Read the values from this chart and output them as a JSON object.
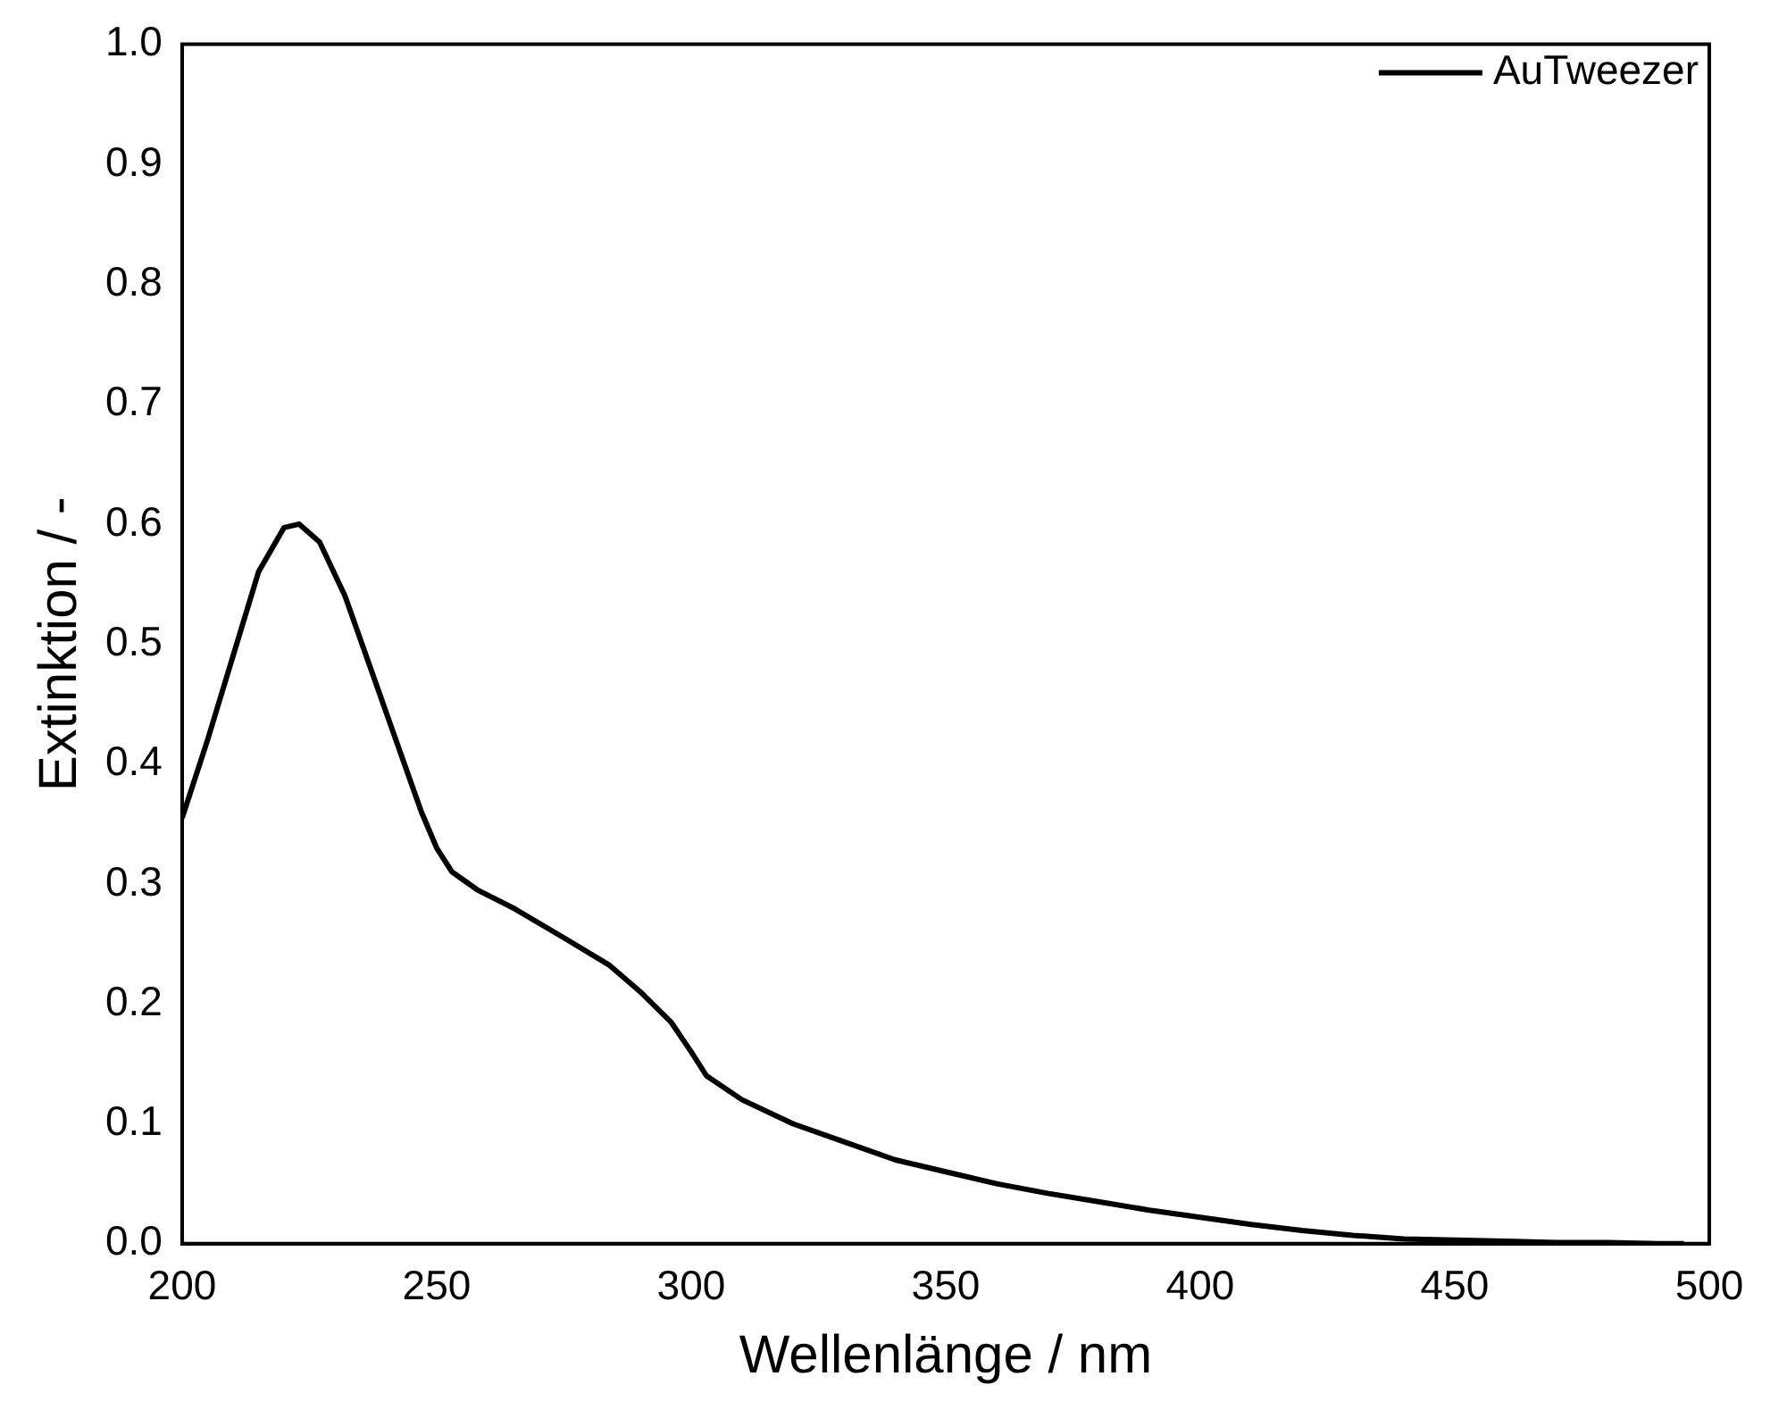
{
  "chart_data": {
    "type": "line",
    "xlabel": "Wellenlänge / nm",
    "ylabel": "Extinktion / -",
    "legend": "top right",
    "marker": "none",
    "line_style": "solid",
    "grid": false,
    "xlim": [
      200,
      500
    ],
    "xticks": [
      200,
      250,
      300,
      350,
      400,
      450,
      500
    ],
    "ylim": [
      0,
      1
    ],
    "yticks": [
      {
        "value": 0,
        "label": "0.0"
      },
      {
        "value": 0.1,
        "label": "0.1"
      },
      {
        "value": 0.2,
        "label": "0.2"
      },
      {
        "value": 0.3,
        "label": "0.3"
      },
      {
        "value": 0.4,
        "label": "0.4"
      },
      {
        "value": 0.5,
        "label": "0.5"
      },
      {
        "value": 0.6,
        "label": "0.6"
      },
      {
        "value": 0.7,
        "label": "0.7"
      },
      {
        "value": 0.8,
        "label": "0.8"
      },
      {
        "value": 0.9,
        "label": "0.9"
      },
      {
        "value": 1,
        "label": "1.0"
      }
    ],
    "series": [
      {
        "name": "AuTweezer",
        "color": "#000000",
        "x": [
          200,
          205,
          210,
          215,
          220,
          223,
          227,
          232,
          237,
          242,
          247,
          250,
          253,
          258,
          265,
          275,
          284,
          290,
          296,
          300,
          303,
          310,
          320,
          330,
          340,
          350,
          360,
          370,
          380,
          390,
          400,
          410,
          420,
          430,
          440,
          450,
          460,
          470,
          480,
          490,
          495
        ],
        "values": [
          0.355,
          0.42,
          0.49,
          0.56,
          0.597,
          0.6,
          0.585,
          0.54,
          0.48,
          0.42,
          0.36,
          0.33,
          0.31,
          0.295,
          0.28,
          0.255,
          0.232,
          0.21,
          0.185,
          0.16,
          0.14,
          0.12,
          0.1,
          0.085,
          0.07,
          0.06,
          0.05,
          0.042,
          0.035,
          0.028,
          0.022,
          0.016,
          0.011,
          0.007,
          0.004,
          0.003,
          0.002,
          0.001,
          0.001,
          0,
          0
        ]
      }
    ]
  }
}
